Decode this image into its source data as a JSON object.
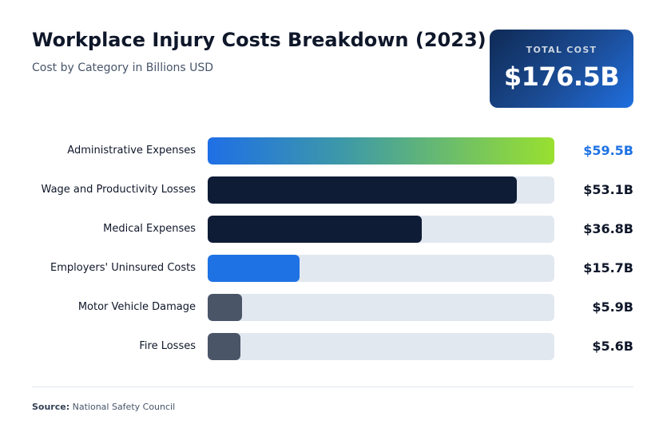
{
  "header": {
    "title": "Workplace Injury Costs Breakdown (2023)",
    "subtitle": "Cost by Category in Billions USD"
  },
  "total": {
    "label": "TOTAL COST",
    "value": "$176.5B"
  },
  "chart_data": {
    "type": "bar",
    "orientation": "horizontal",
    "title": "Workplace Injury Costs Breakdown (2023)",
    "subtitle": "Cost by Category in Billions USD",
    "unit": "Billions USD",
    "xlim": [
      0,
      59.5
    ],
    "categories": [
      "Administrative Expenses",
      "Wage and Productivity Losses",
      "Medical Expenses",
      "Employers' Uninsured Costs",
      "Motor Vehicle Damage",
      "Fire Losses"
    ],
    "values": [
      59.5,
      53.1,
      36.8,
      15.7,
      5.9,
      5.6
    ],
    "value_labels": [
      "$59.5B",
      "$53.1B",
      "$36.8B",
      "$15.7B",
      "$5.9B",
      "$5.6B"
    ],
    "bar_styles": [
      "gradient",
      "dark",
      "dark",
      "blue",
      "slate",
      "slate"
    ]
  },
  "colors": {
    "gradient_start": "#1f6fe6",
    "gradient_mid": "#3e9aa6",
    "gradient_end": "#99e02f",
    "dark": "#0f1c35",
    "blue": "#1f72e4",
    "slate": "#4a5568",
    "track": "#e2e8f0",
    "highlight_value": "#1f72e4",
    "value_text": "#0f172a"
  },
  "footer": {
    "source_label": "Source:",
    "source_text": "National Safety Council"
  }
}
